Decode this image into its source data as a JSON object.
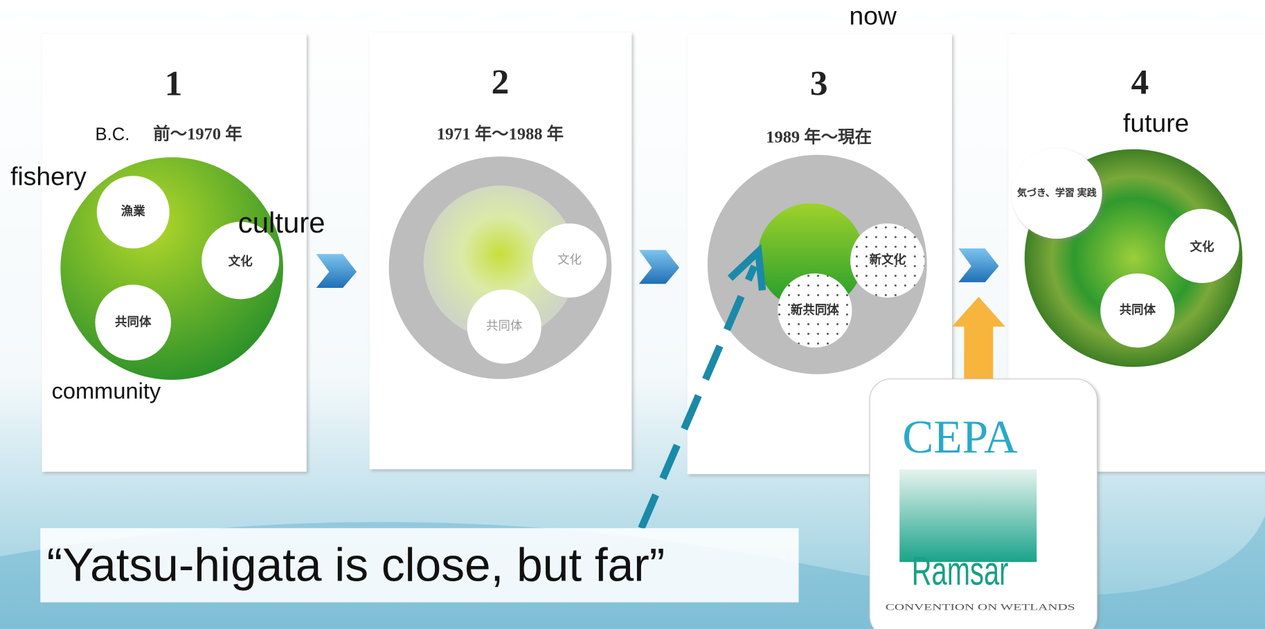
{
  "annotations": {
    "now": "now",
    "future": "future",
    "fishery": "fishery",
    "culture": "culture",
    "community": "community",
    "bc": "B.C."
  },
  "panels": [
    {
      "number": "1",
      "period": "前～1970 年",
      "circles": [
        "漁業",
        "文化",
        "共同体"
      ]
    },
    {
      "number": "2",
      "period": "1971 年～1988 年",
      "circles": [
        "文化",
        "共同体"
      ]
    },
    {
      "number": "3",
      "period": "1989 年～現在",
      "circles": [
        "新文化",
        "新共同体"
      ]
    },
    {
      "number": "4",
      "circles": [
        "気づき、学習 実践",
        "文化",
        "共同体"
      ]
    }
  ],
  "quote": "“Yatsu-higata is close, but far”",
  "logo": {
    "title": "CEPA",
    "name": "Ramsar",
    "caption": "CONVENTION ON WETLANDS"
  }
}
